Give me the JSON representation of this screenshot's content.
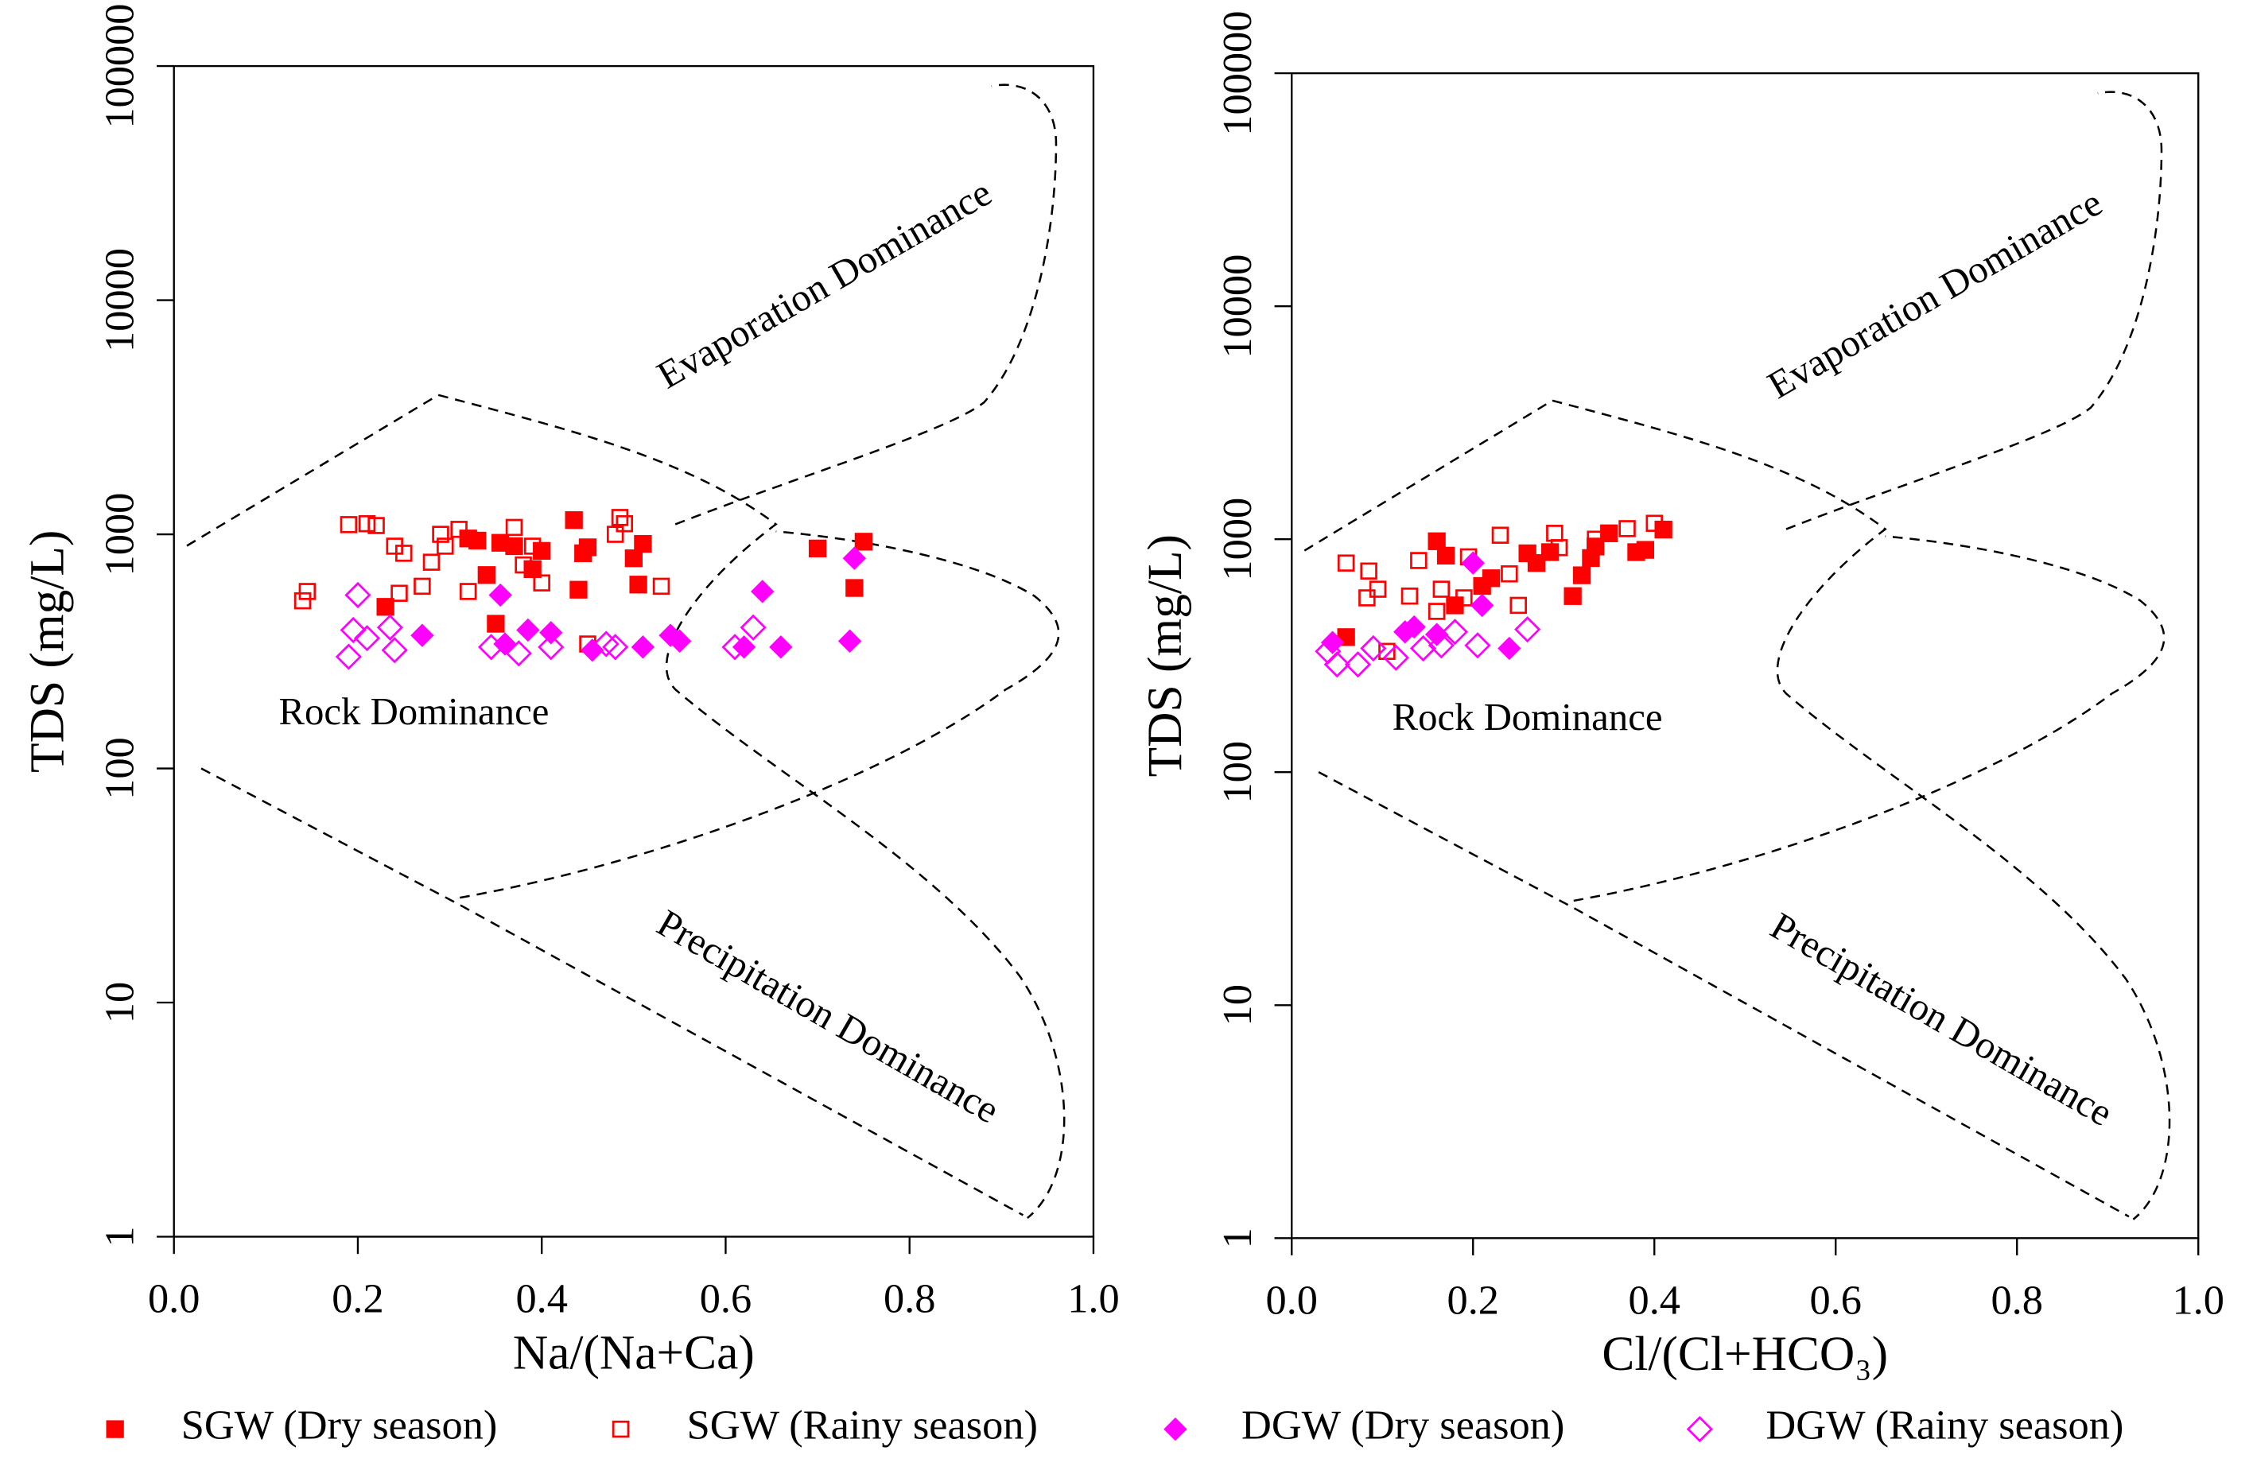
{
  "chart_data": [
    {
      "type": "scatter",
      "xlabel": "Na/(Na+Ca)",
      "ylabel": "TDS (mg/L)",
      "ylog": true,
      "xlim": [
        0,
        1
      ],
      "ylim": [
        1,
        100000
      ],
      "xticks": [
        {
          "value": 0,
          "label": "0.0"
        },
        0.2,
        0.4,
        0.6,
        0.8,
        {
          "value": 1,
          "label": "1.0"
        }
      ],
      "yticks": [
        1,
        10,
        100,
        1000,
        10000,
        100000
      ],
      "annotations": [
        "Evaporation Dominance",
        "Rock Dominance",
        "Precipitation Dominance"
      ],
      "series": [
        {
          "name": "SGW (Dry season)",
          "color": "#ff0000",
          "marker": "filled-square",
          "x": [
            0.23,
            0.32,
            0.33,
            0.34,
            0.355,
            0.37,
            0.35,
            0.39,
            0.4,
            0.435,
            0.44,
            0.445,
            0.45,
            0.5,
            0.51,
            0.505,
            0.7,
            0.74,
            0.75
          ],
          "values": [
            490,
            960,
            940,
            670,
            920,
            890,
            415,
            710,
            850,
            1150,
            580,
            830,
            880,
            790,
            910,
            610,
            870,
            590,
            930
          ]
        },
        {
          "name": "SGW (Rainy season)",
          "color": "#ff0000",
          "marker": "open-square",
          "x": [
            0.14,
            0.145,
            0.19,
            0.21,
            0.22,
            0.24,
            0.25,
            0.245,
            0.27,
            0.28,
            0.29,
            0.295,
            0.31,
            0.32,
            0.37,
            0.38,
            0.39,
            0.4,
            0.48,
            0.485,
            0.49,
            0.53,
            0.45
          ],
          "values": [
            520,
            570,
            1100,
            1110,
            1090,
            890,
            830,
            560,
            600,
            760,
            1000,
            890,
            1050,
            570,
            1070,
            740,
            890,
            620,
            1000,
            1180,
            1110,
            600,
            340
          ]
        },
        {
          "name": "DGW (Dry season)",
          "color": "#ff00ff",
          "marker": "filled-diamond",
          "x": [
            0.27,
            0.355,
            0.36,
            0.385,
            0.41,
            0.455,
            0.51,
            0.54,
            0.55,
            0.64,
            0.66,
            0.735,
            0.74,
            0.62
          ],
          "values": [
            370,
            550,
            340,
            390,
            380,
            320,
            330,
            370,
            350,
            570,
            330,
            350,
            790,
            330
          ]
        },
        {
          "name": "DGW (Rainy season)",
          "color": "#ff00ff",
          "marker": "open-diamond",
          "x": [
            0.19,
            0.195,
            0.2,
            0.21,
            0.235,
            0.24,
            0.345,
            0.375,
            0.41,
            0.47,
            0.48,
            0.61,
            0.63
          ],
          "values": [
            300,
            390,
            550,
            360,
            400,
            320,
            330,
            310,
            330,
            340,
            330,
            330,
            400
          ]
        }
      ]
    },
    {
      "type": "scatter",
      "xlabel": "Cl/(Cl+HCO₃)",
      "ylabel": "TDS (mg/L)",
      "ylog": true,
      "xlim": [
        0,
        1
      ],
      "ylim": [
        1,
        100000
      ],
      "xticks": [
        {
          "value": 0,
          "label": "0.0"
        },
        0.2,
        0.4,
        0.6,
        0.8,
        {
          "value": 1,
          "label": "1.0"
        }
      ],
      "yticks": [
        1,
        10,
        100,
        1000,
        10000,
        100000
      ],
      "annotations": [
        "Evaporation Dominance",
        "Rock Dominance",
        "Precipitation Dominance"
      ],
      "series": [
        {
          "color": "#ff0000",
          "marker": "filled-square",
          "x": [
            0.06,
            0.16,
            0.17,
            0.18,
            0.21,
            0.22,
            0.26,
            0.27,
            0.285,
            0.31,
            0.32,
            0.33,
            0.335,
            0.35,
            0.38,
            0.39,
            0.41
          ],
          "values": [
            380,
            980,
            850,
            520,
            630,
            680,
            870,
            790,
            880,
            570,
            700,
            830,
            930,
            1060,
            880,
            900,
            1100
          ]
        },
        {
          "color": "#ff0000",
          "marker": "open-square",
          "x": [
            0.06,
            0.085,
            0.095,
            0.083,
            0.13,
            0.14,
            0.165,
            0.16,
            0.19,
            0.195,
            0.22,
            0.23,
            0.24,
            0.25,
            0.29,
            0.295,
            0.335,
            0.37,
            0.4,
            0.105
          ],
          "values": [
            790,
            730,
            610,
            560,
            570,
            810,
            610,
            490,
            560,
            840,
            680,
            1040,
            710,
            520,
            1060,
            920,
            1000,
            1110,
            1170,
            330
          ]
        },
        {
          "color": "#ff00ff",
          "marker": "filled-diamond",
          "x": [
            0.045,
            0.16,
            0.2,
            0.21,
            0.24,
            0.125,
            0.135
          ],
          "values": [
            360,
            390,
            790,
            520,
            340,
            400,
            420
          ]
        },
        {
          "color": "#ff00ff",
          "marker": "open-diamond",
          "x": [
            0.04,
            0.05,
            0.073,
            0.09,
            0.115,
            0.145,
            0.165,
            0.18,
            0.205,
            0.26
          ],
          "values": [
            330,
            290,
            290,
            340,
            310,
            340,
            350,
            400,
            350,
            410
          ]
        }
      ]
    }
  ]
}
